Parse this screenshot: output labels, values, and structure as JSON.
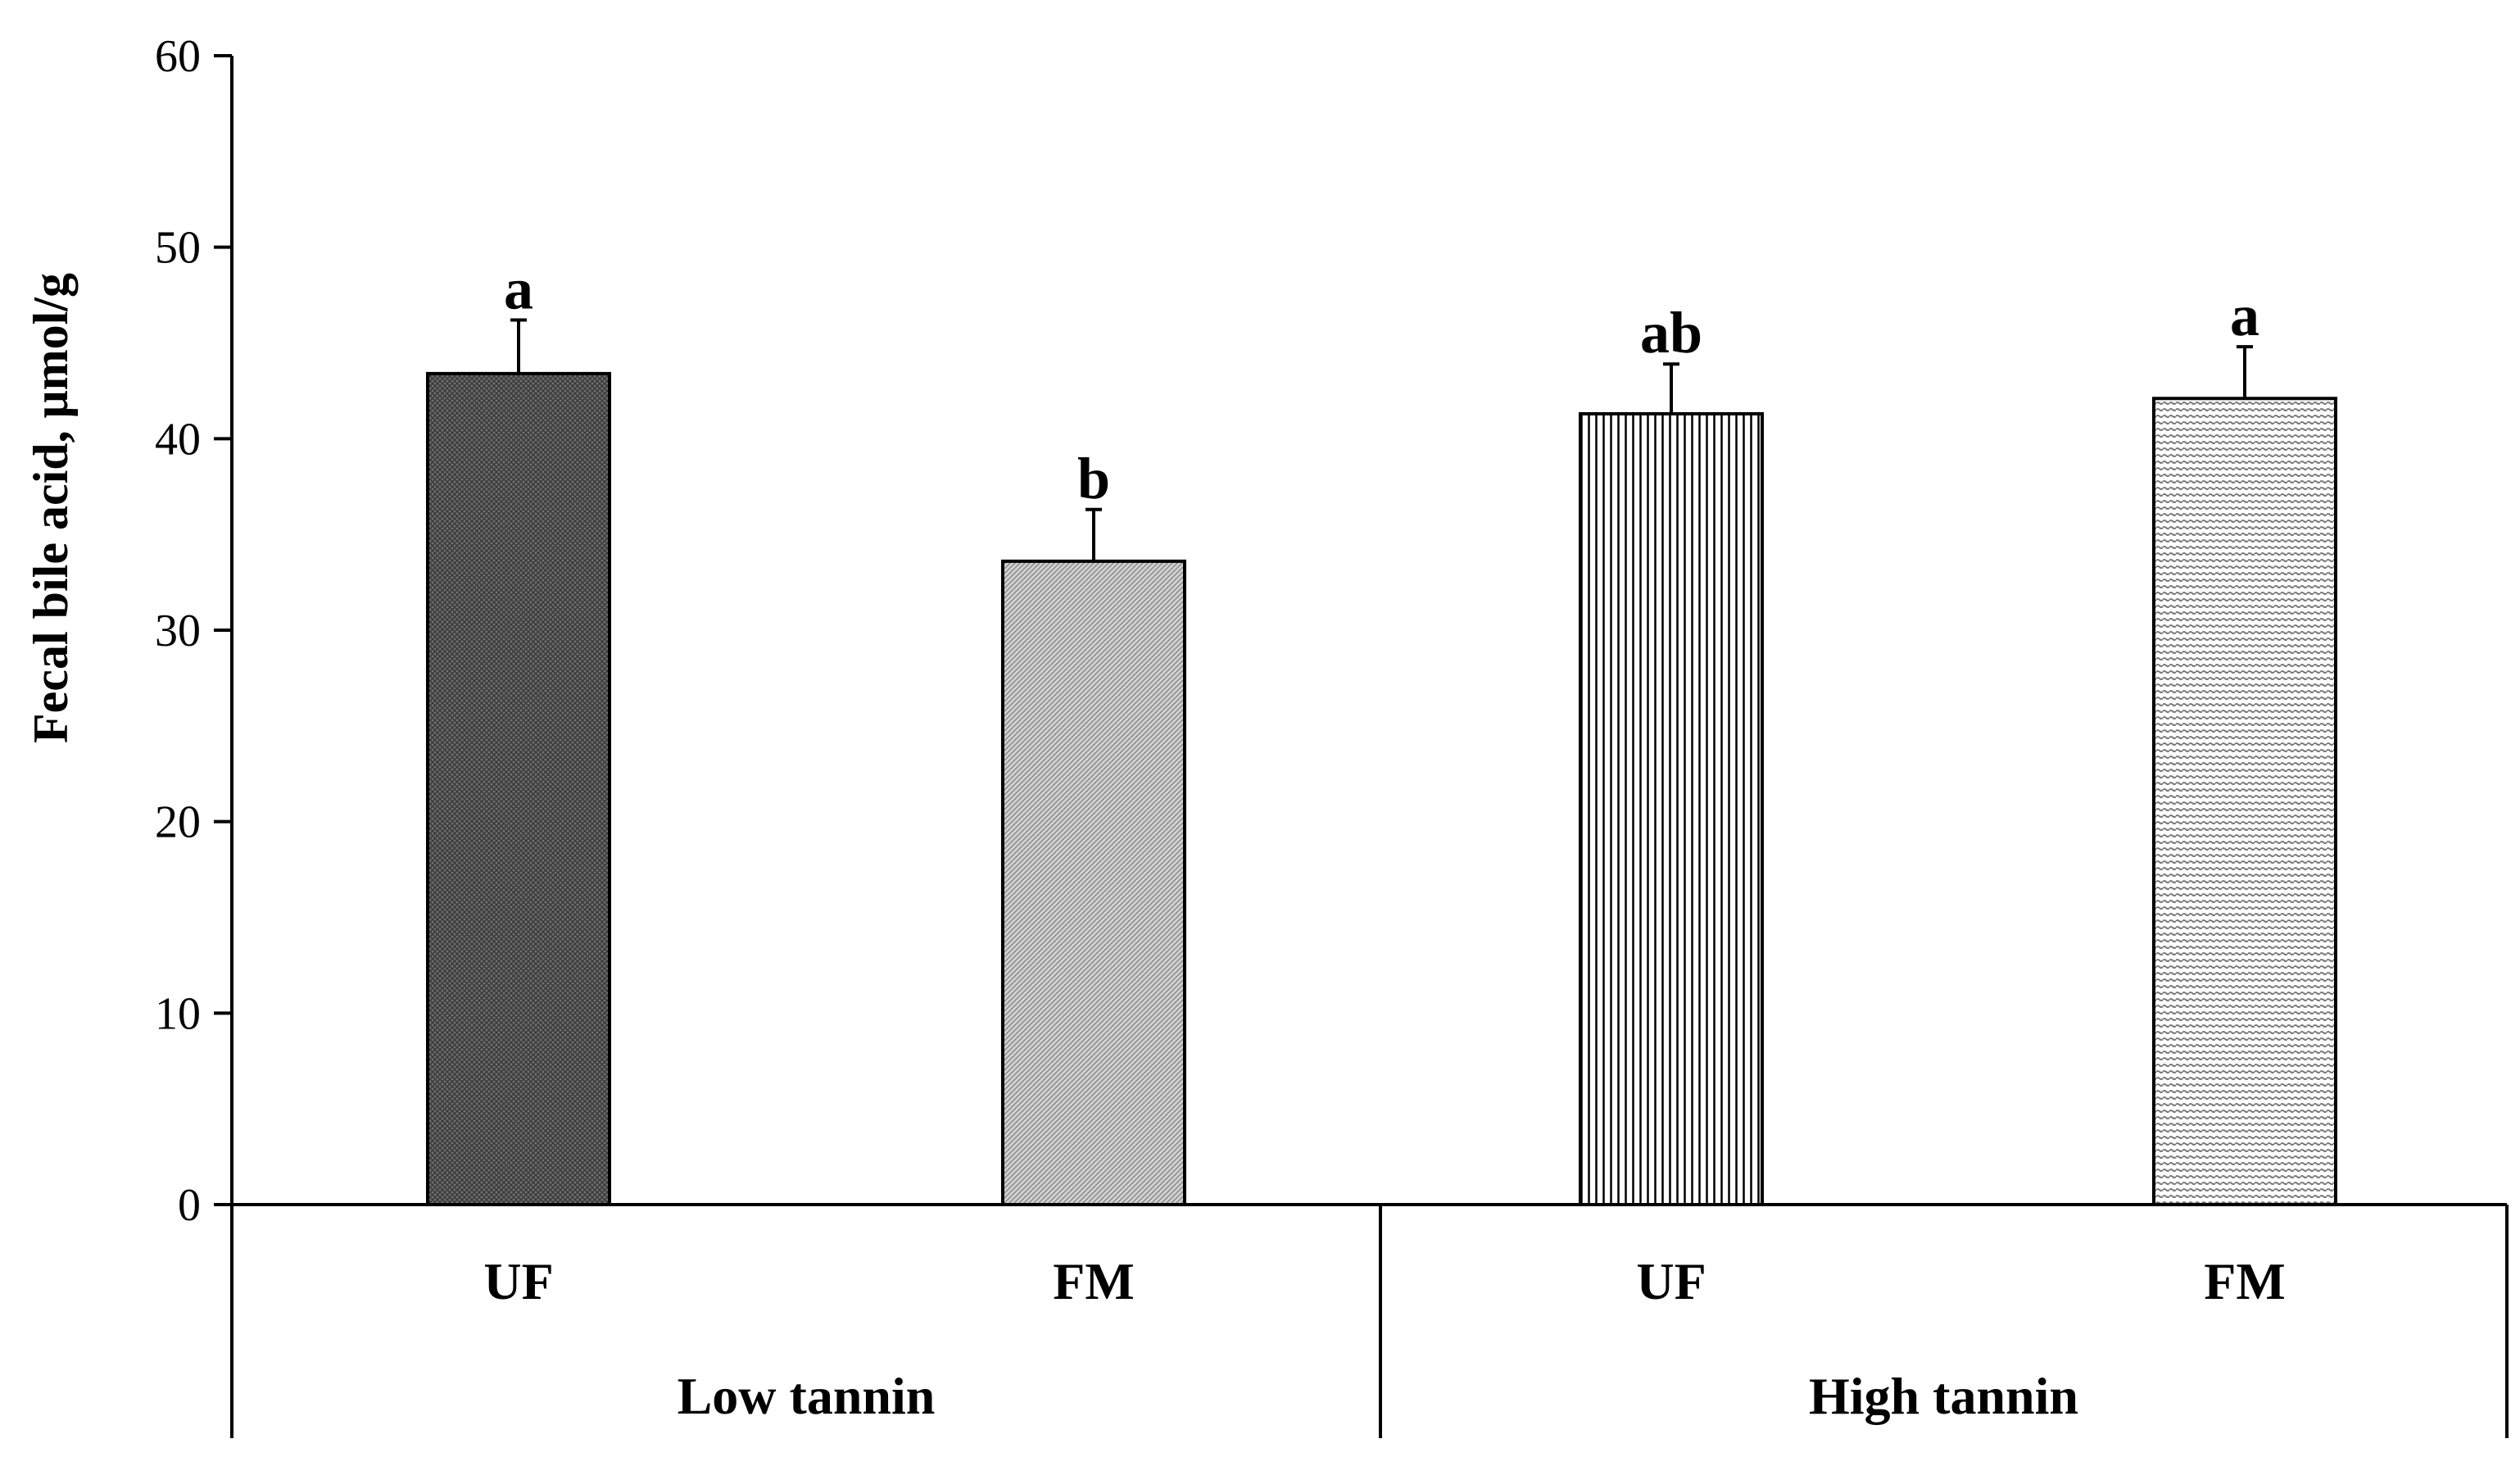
{
  "chart_data": {
    "type": "bar",
    "title": "",
    "xlabel": "",
    "ylabel": "Fecal bile acid, μmol/g",
    "ylim": [
      0,
      60
    ],
    "yticks": [
      0,
      10,
      20,
      30,
      40,
      50,
      60
    ],
    "grid": false,
    "groups": [
      {
        "label": "Low tannin",
        "categories": [
          "UF",
          "FM"
        ]
      },
      {
        "label": "High tannin",
        "categories": [
          "UF",
          "FM"
        ]
      }
    ],
    "bars": [
      {
        "group": "Low tannin",
        "category": "UF",
        "value": 43.4,
        "error": 2.8,
        "sig": "a",
        "fill": "dark-crosshatch"
      },
      {
        "group": "Low tannin",
        "category": "FM",
        "value": 33.6,
        "error": 2.7,
        "sig": "b",
        "fill": "light-diagonal"
      },
      {
        "group": "High tannin",
        "category": "UF",
        "value": 41.3,
        "error": 2.6,
        "sig": "ab",
        "fill": "vertical-lines"
      },
      {
        "group": "High tannin",
        "category": "FM",
        "value": 42.1,
        "error": 2.7,
        "sig": "a",
        "fill": "horizontal-lines"
      }
    ]
  }
}
